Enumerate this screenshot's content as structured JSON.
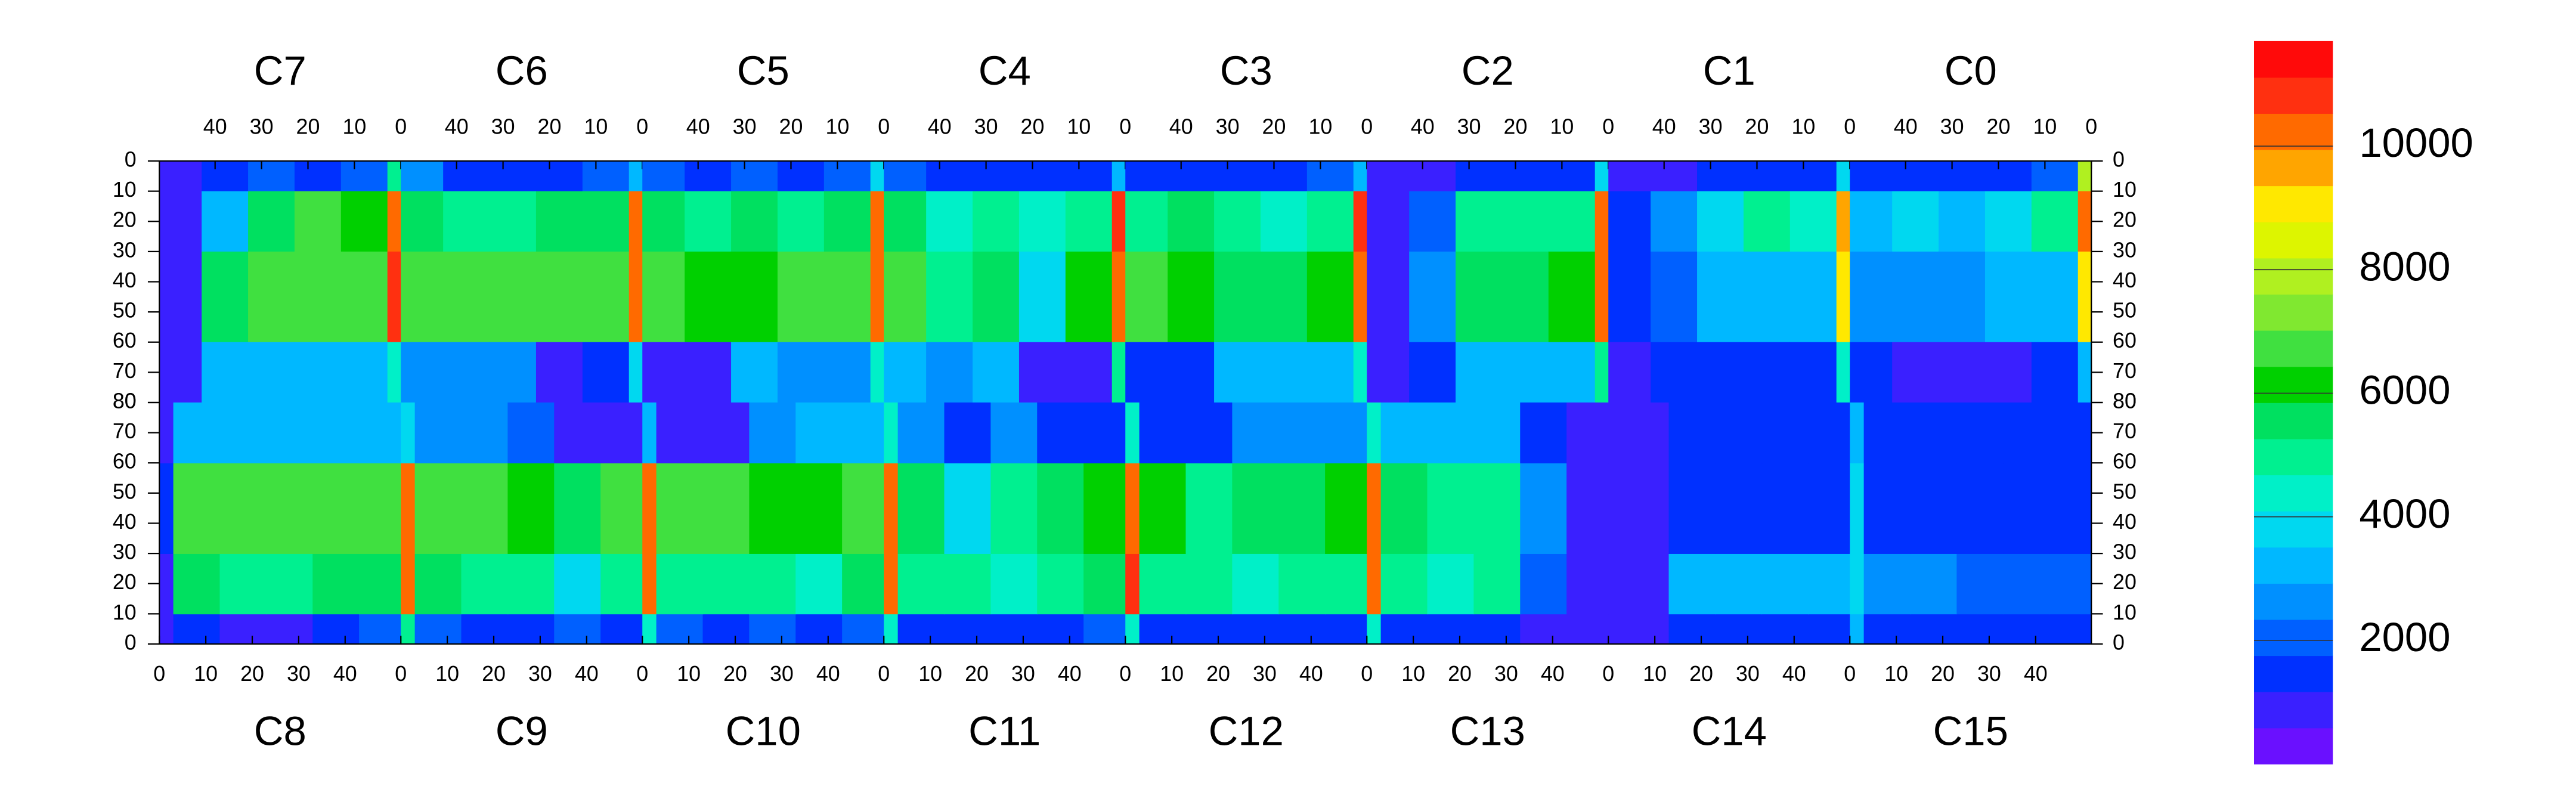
{
  "chart_data": {
    "type": "heatmap",
    "xlim": [
      0,
      52
    ],
    "xticks": [
      0,
      10,
      20,
      30,
      40
    ],
    "ylim": [
      0,
      80
    ],
    "yticks": [
      0,
      10,
      20,
      30,
      40,
      50,
      60,
      70,
      80
    ],
    "xbins": [
      0,
      3,
      13,
      23,
      33,
      43,
      52
    ],
    "ybins": [
      0,
      10,
      30,
      60,
      80
    ],
    "zlim": [
      0,
      11700
    ],
    "zticks": [
      2000,
      4000,
      6000,
      8000,
      10000
    ],
    "colors": [
      "#6a10ff",
      "#3a20ff",
      "#0030ff",
      "#0060ff",
      "#0090ff",
      "#00b8ff",
      "#00d8f0",
      "#00f0c8",
      "#00f090",
      "#00e060",
      "#00d000",
      "#40e040",
      "#80e830",
      "#b0f020",
      "#ddf500",
      "#ffe800",
      "#ffa500",
      "#ff6a00",
      "#ff3010",
      "#ff0a0a"
    ],
    "top_chips": [
      {
        "name": "C7",
        "values": [
          [
            5000,
            2000,
            1500,
            2000,
            1500,
            800
          ],
          [
            10500,
            6000,
            6500,
            5500,
            3000,
            800
          ],
          [
            11000,
            7000,
            7000,
            6500,
            5500,
            800
          ],
          [
            4500,
            3000,
            3000,
            3000,
            3000,
            800
          ]
        ]
      },
      {
        "name": "C6",
        "values": [
          [
            3500,
            2000,
            1500,
            1500,
            1500,
            2500
          ],
          [
            10500,
            5500,
            5500,
            5000,
            5000,
            5500
          ],
          [
            10500,
            7000,
            6500,
            6500,
            6500,
            7000
          ],
          [
            4000,
            1200,
            800,
            2500,
            2500,
            2500
          ]
        ]
      },
      {
        "name": "C5",
        "values": [
          [
            4000,
            2000,
            1500,
            2000,
            1500,
            2000
          ],
          [
            10500,
            5500,
            5000,
            5500,
            5000,
            5500
          ],
          [
            10000,
            6500,
            6500,
            6000,
            6000,
            6500
          ],
          [
            4500,
            2500,
            2500,
            3000,
            1000,
            1000
          ]
        ]
      },
      {
        "name": "C4",
        "values": [
          [
            3000,
            1500,
            1500,
            1500,
            1500,
            2000
          ],
          [
            11000,
            5000,
            4500,
            5000,
            4500,
            5500
          ],
          [
            10500,
            6000,
            4000,
            5500,
            5000,
            6500
          ],
          [
            5000,
            1000,
            1000,
            3000,
            2500,
            3500
          ]
        ]
      },
      {
        "name": "C3",
        "values": [
          [
            3500,
            1800,
            1500,
            1500,
            1500,
            1500
          ],
          [
            11000,
            5000,
            4500,
            5000,
            5500,
            5000
          ],
          [
            10000,
            6000,
            5500,
            5500,
            6000,
            6500
          ],
          [
            4500,
            3000,
            3500,
            3000,
            1200,
            1200
          ]
        ]
      },
      {
        "name": "C2",
        "values": [
          [
            4000,
            1500,
            1500,
            1500,
            700,
            700
          ],
          [
            10500,
            5000,
            5000,
            5000,
            2000,
            700
          ],
          [
            10500,
            6000,
            5500,
            5500,
            2500,
            700
          ],
          [
            5000,
            3500,
            3000,
            3000,
            1500,
            700
          ]
        ]
      },
      {
        "name": "C1",
        "values": [
          [
            4000,
            1500,
            1500,
            1200,
            700,
            700
          ],
          [
            9500,
            4500,
            5000,
            4000,
            2500,
            1500
          ],
          [
            9000,
            3500,
            3500,
            3000,
            2000,
            1200
          ],
          [
            4500,
            1500,
            1500,
            1500,
            1200,
            900
          ]
        ]
      },
      {
        "name": "C0",
        "values": [
          [
            8000,
            2000,
            1500,
            1200,
            1500,
            1500
          ],
          [
            10000,
            5000,
            4000,
            3500,
            4000,
            3500
          ],
          [
            9000,
            3500,
            3000,
            2500,
            2500,
            2500
          ],
          [
            3500,
            1200,
            1000,
            1000,
            1000,
            1200
          ]
        ]
      }
    ],
    "bottom_chips": [
      {
        "name": "C8",
        "values": [
          [
            1000,
            1500,
            1000,
            800,
            1500,
            2000
          ],
          [
            1000,
            5500,
            5000,
            5000,
            5500,
            5500
          ],
          [
            1200,
            6500,
            6500,
            6500,
            6500,
            6500
          ],
          [
            1000,
            3000,
            3000,
            3000,
            3000,
            3000
          ]
        ]
      },
      {
        "name": "C9",
        "values": [
          [
            5000,
            2000,
            1500,
            1500,
            2000,
            1500
          ],
          [
            10500,
            5500,
            5000,
            5000,
            4000,
            5000
          ],
          [
            10500,
            6500,
            6500,
            6000,
            5500,
            6500
          ],
          [
            4000,
            2500,
            2500,
            2000,
            800,
            800
          ]
        ]
      },
      {
        "name": "C10",
        "values": [
          [
            4500,
            2000,
            1500,
            2000,
            1500,
            2000
          ],
          [
            10500,
            5000,
            5000,
            5000,
            4500,
            5500
          ],
          [
            10500,
            6500,
            6500,
            6000,
            6000,
            6500
          ],
          [
            3500,
            800,
            800,
            2500,
            3000,
            3000
          ]
        ]
      },
      {
        "name": "C11",
        "values": [
          [
            4500,
            1500,
            1500,
            1500,
            1500,
            2000
          ],
          [
            10500,
            5000,
            5000,
            4500,
            5000,
            5500
          ],
          [
            10500,
            5500,
            4000,
            5000,
            5500,
            6000
          ],
          [
            4500,
            2500,
            1500,
            2500,
            1200,
            1200
          ]
        ]
      },
      {
        "name": "C12",
        "values": [
          [
            4500,
            1500,
            1500,
            1500,
            1500,
            1500
          ],
          [
            11000,
            5000,
            5000,
            4500,
            5000,
            5000
          ],
          [
            10500,
            6000,
            5000,
            5500,
            5500,
            6000
          ],
          [
            4500,
            1200,
            1500,
            2500,
            2500,
            2500
          ]
        ]
      },
      {
        "name": "C13",
        "values": [
          [
            4500,
            1500,
            1500,
            1200,
            800,
            700
          ],
          [
            10500,
            5000,
            4500,
            5000,
            2000,
            700
          ],
          [
            10500,
            5500,
            5000,
            5000,
            2500,
            700
          ],
          [
            4500,
            3500,
            3000,
            3000,
            1500,
            700
          ]
        ]
      },
      {
        "name": "C14",
        "values": [
          [
            700,
            700,
            1200,
            1500,
            1200,
            1200
          ],
          [
            700,
            700,
            3000,
            3500,
            3000,
            3000
          ],
          [
            700,
            700,
            1500,
            1500,
            1500,
            1500
          ],
          [
            700,
            700,
            1200,
            1200,
            1200,
            1200
          ]
        ]
      },
      {
        "name": "C15",
        "values": [
          [
            3500,
            1500,
            1500,
            1200,
            1200,
            1200
          ],
          [
            4000,
            2500,
            2500,
            2000,
            2000,
            1800
          ],
          [
            4000,
            1500,
            1500,
            1500,
            1500,
            1500
          ],
          [
            3500,
            1200,
            1200,
            1200,
            1200,
            1200
          ]
        ]
      }
    ]
  }
}
